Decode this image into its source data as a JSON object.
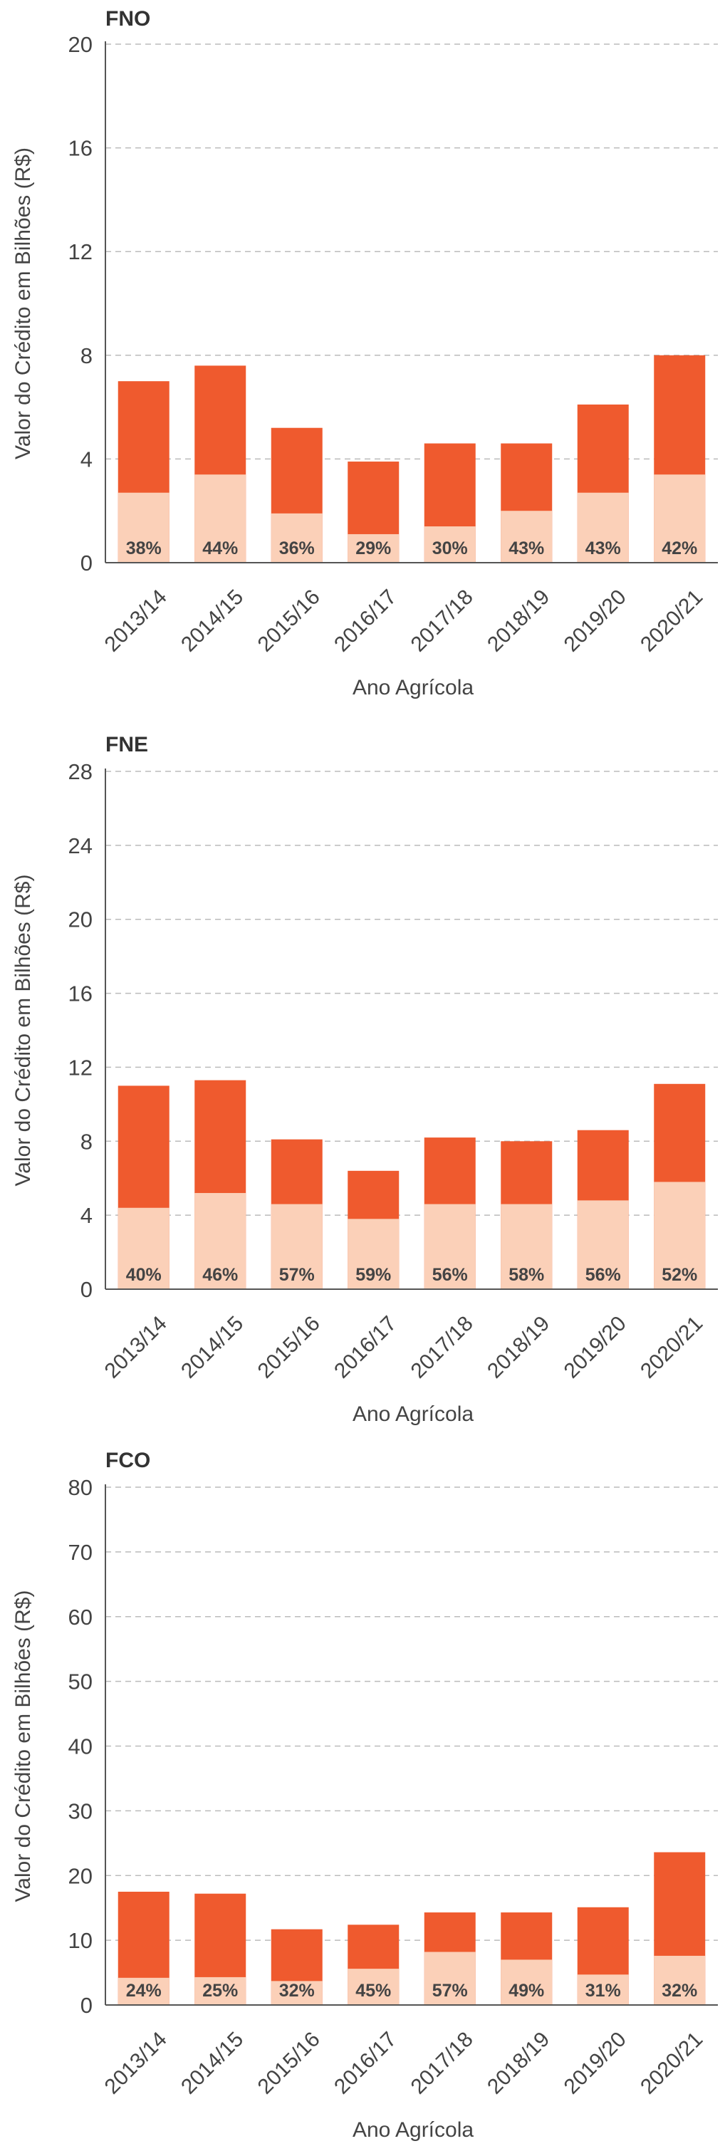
{
  "colors": {
    "total": "#EF5A2E",
    "share": "#FBD0B8",
    "grid": "#bbbbbb",
    "axis": "#555555"
  },
  "chart_data": [
    {
      "type": "bar",
      "title": "FNO",
      "xlabel": "Ano Agrícola",
      "ylabel": "Valor do Crédito em Bilhões (R$)",
      "ylim": [
        0,
        20
      ],
      "yticks": [
        0,
        4,
        8,
        12,
        16,
        20
      ],
      "grid": true,
      "categories": [
        "2013/14",
        "2014/15",
        "2015/16",
        "2016/17",
        "2017/18",
        "2018/19",
        "2019/20",
        "2020/21"
      ],
      "series": [
        {
          "role": "total",
          "values": [
            7.0,
            7.6,
            5.2,
            3.9,
            4.6,
            4.6,
            6.1,
            8.0
          ]
        },
        {
          "role": "share",
          "values": [
            2.7,
            3.4,
            1.9,
            1.1,
            1.4,
            2.0,
            2.7,
            3.4
          ]
        }
      ],
      "data_labels": [
        "38%",
        "44%",
        "36%",
        "29%",
        "30%",
        "43%",
        "43%",
        "42%"
      ]
    },
    {
      "type": "bar",
      "title": "FNE",
      "xlabel": "Ano Agrícola",
      "ylabel": "Valor do Crédito em Bilhões (R$)",
      "ylim": [
        0,
        28
      ],
      "yticks": [
        0,
        4,
        8,
        12,
        16,
        20,
        24,
        28
      ],
      "grid": true,
      "categories": [
        "2013/14",
        "2014/15",
        "2015/16",
        "2016/17",
        "2017/18",
        "2018/19",
        "2019/20",
        "2020/21"
      ],
      "series": [
        {
          "role": "total",
          "values": [
            11.0,
            11.3,
            8.1,
            6.4,
            8.2,
            8.0,
            8.6,
            11.1
          ]
        },
        {
          "role": "share",
          "values": [
            4.4,
            5.2,
            4.6,
            3.8,
            4.6,
            4.6,
            4.8,
            5.8
          ]
        }
      ],
      "data_labels": [
        "40%",
        "46%",
        "57%",
        "59%",
        "56%",
        "58%",
        "56%",
        "52%"
      ]
    },
    {
      "type": "bar",
      "title": "FCO",
      "xlabel": "Ano Agrícola",
      "ylabel": "Valor do Crédito em Bilhões (R$)",
      "ylim": [
        0,
        80
      ],
      "yticks": [
        0,
        10,
        20,
        30,
        40,
        50,
        60,
        70,
        80
      ],
      "grid": true,
      "categories": [
        "2013/14",
        "2014/15",
        "2015/16",
        "2016/17",
        "2017/18",
        "2018/19",
        "2019/20",
        "2020/21"
      ],
      "series": [
        {
          "role": "total",
          "values": [
            17.5,
            17.2,
            11.7,
            12.4,
            14.3,
            14.3,
            15.1,
            23.6
          ]
        },
        {
          "role": "share",
          "values": [
            4.2,
            4.3,
            3.7,
            5.6,
            8.2,
            7.0,
            4.7,
            7.6
          ]
        }
      ],
      "data_labels": [
        "24%",
        "25%",
        "32%",
        "45%",
        "57%",
        "49%",
        "31%",
        "32%"
      ]
    }
  ]
}
